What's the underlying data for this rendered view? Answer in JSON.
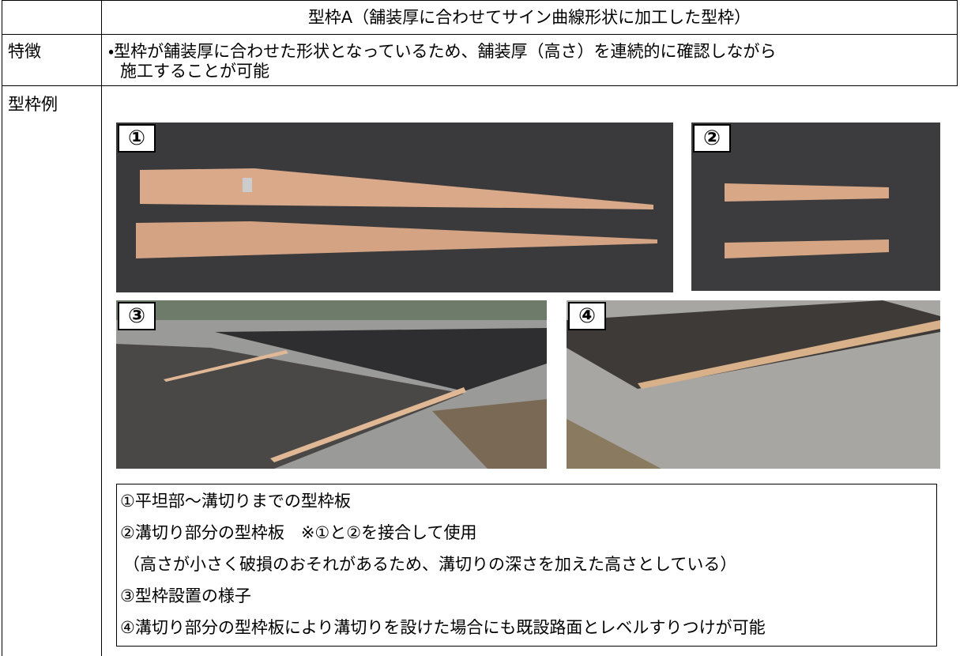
{
  "header": {
    "title": "型枠A（舗装厚に合わせてサイン曲線形状に加工した型枠）"
  },
  "rows": [
    {
      "label": "特徴",
      "lines": [
        "・型枠が舗装厚に合わせた形状となっているため、舗装厚（高さ）を連続的に確認しながら",
        "施工することが可能"
      ]
    },
    {
      "label": "型枠例",
      "photos": [
        "①",
        "②",
        "③",
        "④"
      ],
      "notes": [
        "①平坦部～溝切りまでの型枠板",
        "②溝切り部分の型枠板　※①と②を接合して使用",
        "（高さが小さく破損のおそれがあるため、溝切りの深さを加えた高さとしている）",
        "③型枠設置の様子",
        "④溝切り部分の型枠板により溝切りを設けた場合にも既設路面とレベルすりつけが可能"
      ]
    }
  ]
}
